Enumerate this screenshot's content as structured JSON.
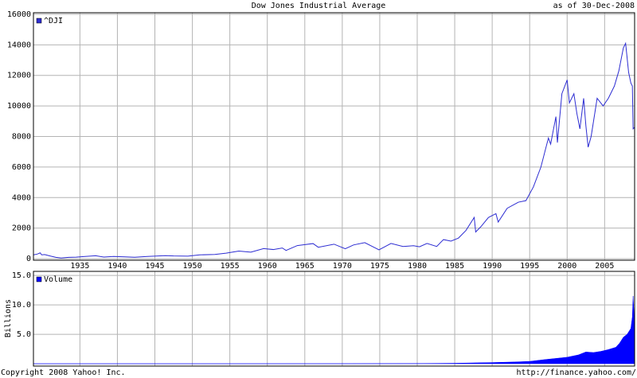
{
  "chart_data": [
    {
      "type": "line",
      "title": "Dow Jones Industrial Average",
      "annotation": "as of 30-Dec-2008",
      "x": [
        1928.8,
        1929.3,
        1929.7,
        1929.9,
        1930.3,
        1931.0,
        1931.8,
        1932.5,
        1933.5,
        1934.5,
        1935.5,
        1937.1,
        1938.2,
        1939.5,
        1941.0,
        1942.3,
        1944.0,
        1946.4,
        1947.5,
        1949.4,
        1951.0,
        1953.0,
        1954.5,
        1956.2,
        1957.8,
        1959.5,
        1960.8,
        1962.0,
        1962.5,
        1964.0,
        1966.1,
        1966.8,
        1968.9,
        1970.4,
        1971.5,
        1973.0,
        1974.9,
        1976.5,
        1978.1,
        1979.5,
        1980.3,
        1981.3,
        1982.6,
        1983.5,
        1984.5,
        1985.5,
        1986.5,
        1987.6,
        1987.8,
        1988.5,
        1989.5,
        1990.5,
        1990.8,
        1992.0,
        1993.5,
        1994.5,
        1995.5,
        1996.5,
        1997.5,
        1997.8,
        1998.5,
        1998.7,
        1999.3,
        2000.0,
        2000.3,
        2000.9,
        2001.3,
        2001.7,
        2002.2,
        2002.5,
        2002.8,
        2003.2,
        2004.0,
        2004.8,
        2005.5,
        2006.3,
        2006.9,
        2007.5,
        2007.8,
        2008.2,
        2008.5,
        2008.7,
        2008.8,
        2008.99
      ],
      "series": [
        {
          "name": "^DJI",
          "color": "#2d2dd2",
          "values": [
            250,
            300,
            380,
            250,
            270,
            180,
            90,
            45,
            90,
            100,
            140,
            190,
            110,
            150,
            120,
            95,
            145,
            200,
            180,
            170,
            250,
            280,
            360,
            500,
            430,
            660,
            600,
            700,
            540,
            860,
            990,
            750,
            950,
            650,
            900,
            1050,
            580,
            1000,
            800,
            850,
            780,
            1000,
            800,
            1250,
            1150,
            1350,
            1850,
            2700,
            1750,
            2100,
            2700,
            2950,
            2400,
            3300,
            3700,
            3800,
            4700,
            6000,
            7900,
            7500,
            9300,
            7600,
            10800,
            11700,
            10200,
            10800,
            9500,
            8500,
            10500,
            8700,
            7300,
            8000,
            10500,
            10000,
            10500,
            11300,
            12300,
            13800,
            14100,
            12200,
            11500,
            11300,
            8500,
            8600
          ]
        }
      ],
      "xlim": [
        1928.8,
        2009.0
      ],
      "ylim": [
        -100,
        16100
      ],
      "xticks": [
        1935,
        1940,
        1945,
        1950,
        1955,
        1960,
        1965,
        1970,
        1975,
        1980,
        1985,
        1990,
        1995,
        2000,
        2005
      ],
      "yticks": [
        0,
        2000,
        4000,
        6000,
        8000,
        10000,
        12000,
        14000,
        16000
      ],
      "grid": true
    },
    {
      "type": "area",
      "ylabel": "Billions",
      "x": [
        1928.8,
        1950.0,
        1970.0,
        1980.0,
        1985.0,
        1988.0,
        1990.0,
        1993.0,
        1995.0,
        1997.0,
        1998.5,
        2000.0,
        2001.5,
        2002.5,
        2003.5,
        2004.5,
        2005.5,
        2006.5,
        2007.0,
        2007.5,
        2008.0,
        2008.5,
        2008.7,
        2008.8,
        2008.9,
        2008.99
      ],
      "series": [
        {
          "name": "Volume",
          "color": "#0000ff",
          "values": [
            0.0,
            0.0,
            0.01,
            0.03,
            0.08,
            0.15,
            0.2,
            0.3,
            0.4,
            0.7,
            0.9,
            1.1,
            1.5,
            2.0,
            1.9,
            2.1,
            2.4,
            2.8,
            3.5,
            4.5,
            5.0,
            6.0,
            8.0,
            11.5,
            9.0,
            5.0
          ]
        }
      ],
      "xlim": [
        1928.8,
        2009.0
      ],
      "ylim": [
        -0.4,
        15.7
      ],
      "yticks": [
        {
          "value": 5,
          "label": "5.0"
        },
        {
          "value": 10,
          "label": "10.0"
        },
        {
          "value": 15,
          "label": "15.0"
        }
      ],
      "grid": true,
      "annotations": [
        "Copyright 2008 Yahoo! Inc.",
        "http://finance.yahoo.com/"
      ]
    }
  ]
}
